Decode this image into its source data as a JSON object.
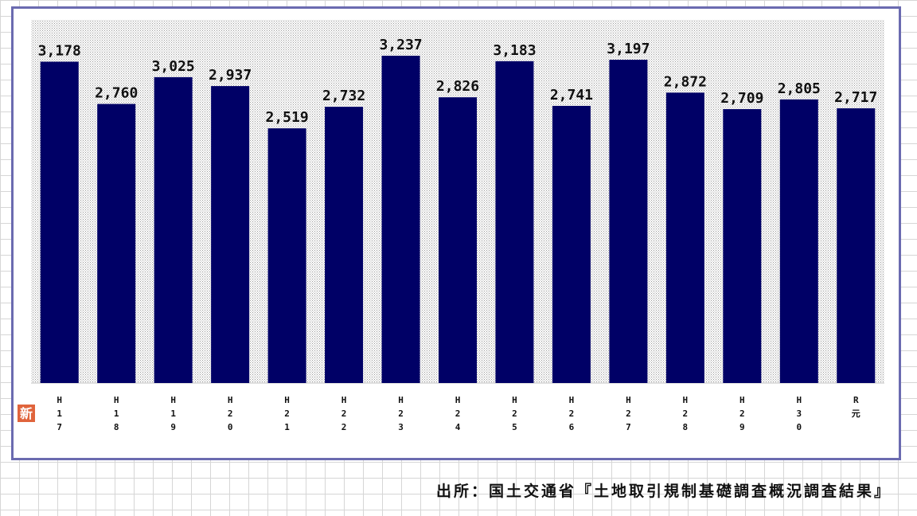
{
  "chart_data": {
    "type": "bar",
    "categories": [
      [
        "H",
        "1",
        "7"
      ],
      [
        "H",
        "1",
        "8"
      ],
      [
        "H",
        "1",
        "9"
      ],
      [
        "H",
        "2",
        "0"
      ],
      [
        "H",
        "2",
        "1"
      ],
      [
        "H",
        "2",
        "2"
      ],
      [
        "H",
        "2",
        "3"
      ],
      [
        "H",
        "2",
        "4"
      ],
      [
        "H",
        "2",
        "5"
      ],
      [
        "H",
        "2",
        "6"
      ],
      [
        "H",
        "2",
        "7"
      ],
      [
        "H",
        "2",
        "8"
      ],
      [
        "H",
        "2",
        "9"
      ],
      [
        "H",
        "3",
        "0"
      ],
      [
        "R",
        "元"
      ]
    ],
    "values": [
      3178,
      2760,
      3025,
      2937,
      2519,
      2732,
      3237,
      2826,
      3183,
      2741,
      3197,
      2872,
      2709,
      2805,
      2717
    ],
    "value_labels": [
      "3,178",
      "2,760",
      "3,025",
      "2,937",
      "2,519",
      "2,732",
      "3,237",
      "2,826",
      "3,183",
      "2,741",
      "3,197",
      "2,872",
      "2,709",
      "2,805",
      "2,717"
    ],
    "title": "",
    "xlabel": "",
    "ylabel": "",
    "bar_color": "#000066",
    "plot_pattern_color": "#9a9a9a",
    "new_badge": "新",
    "new_badge_color": "#e0643c"
  },
  "source": "出所：国土交通省『土地取引規制基礎調査概況調査結果』"
}
